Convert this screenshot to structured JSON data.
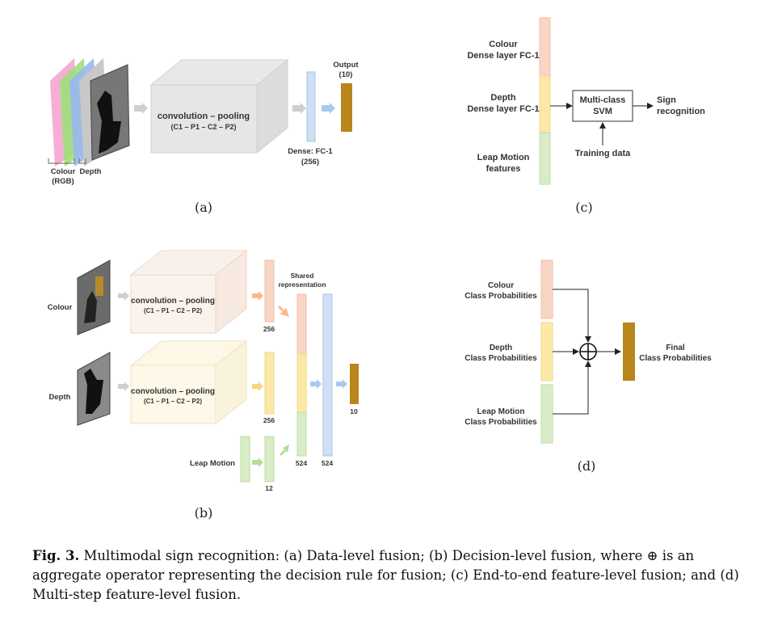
{
  "panel_a": {
    "conv_title": "convolution – pooling",
    "conv_sub": "(C1 – P1 – C2 – P2)",
    "input_colour": "Colour",
    "input_rgb": "(RGB)",
    "input_depth": "Depth",
    "dense_l1": "Dense: FC-1",
    "dense_l2": "(256)",
    "output_l1": "Output",
    "output_l2": "(10)",
    "label": "(a)"
  },
  "panel_b": {
    "colour": "Colour",
    "depth": "Depth",
    "leap": "Leap Motion",
    "conv_title": "convolution – pooling",
    "conv_sub": "(C1 – P1 – C2 – P2)",
    "shared_l1": "Shared",
    "shared_l2": "representation",
    "n256a": "256",
    "n256b": "256",
    "n12": "12",
    "n524a": "524",
    "n524b": "524",
    "n10": "10",
    "label": "(b)"
  },
  "panel_c": {
    "colour_l1": "Colour",
    "colour_l2": "Dense layer FC-1",
    "depth_l1": "Depth",
    "depth_l2": "Dense layer FC-1",
    "leap_l1": "Leap Motion",
    "leap_l2": "features",
    "svm_l1": "Multi-class",
    "svm_l2": "SVM",
    "out_l1": "Sign",
    "out_l2": "recognition",
    "training": "Training data",
    "label": "(c)"
  },
  "panel_d": {
    "colour_l1": "Colour",
    "colour_l2": "Class Probabilities",
    "depth_l1": "Depth",
    "depth_l2": "Class Probabilities",
    "leap_l1": "Leap Motion",
    "leap_l2": "Class Probabilities",
    "final_l1": "Final",
    "final_l2": "Class Probabilities",
    "label": "(d)"
  },
  "caption": {
    "bold": "Fig. 3.",
    "text": "Multimodal sign recognition: (a) Data-level fusion; (b) Decision-level fusion, where ⊕ is an aggregate operator representing the decision rule for fusion; (c) End-to-end feature-level fusion; and (d) Multi-step feature-level fusion."
  },
  "colors": {
    "colour_block": "#f9d5c4",
    "depth_block": "#fde9a6",
    "leap_block": "#d8edc7",
    "dense_block": "#cfe0f4",
    "output_block": "#b8861b"
  }
}
